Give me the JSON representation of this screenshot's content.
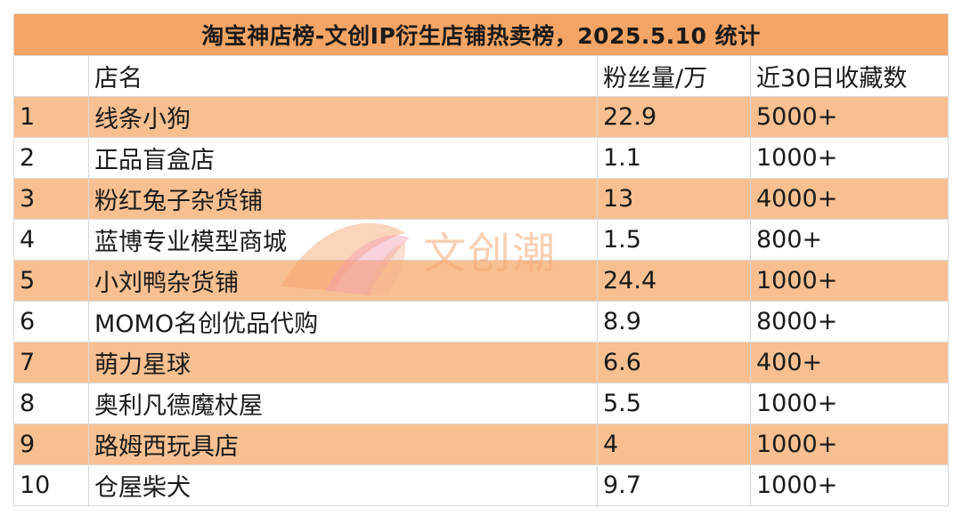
{
  "chart_data": {
    "type": "table",
    "title": "淘宝神店榜-文创IP衍生店铺热卖榜，2025.5.10 统计",
    "columns": [
      "",
      "店名",
      "粉丝量/万",
      "近30日收藏数"
    ],
    "rows": [
      {
        "rank": "1",
        "name": "线条小狗",
        "fans": "22.9",
        "favorites": "5000+"
      },
      {
        "rank": "2",
        "name": "正品盲盒店",
        "fans": "1.1",
        "favorites": "1000+"
      },
      {
        "rank": "3",
        "name": "粉红兔子杂货铺",
        "fans": "13",
        "favorites": "4000+"
      },
      {
        "rank": "4",
        "name": "蓝博专业模型商城",
        "fans": "1.5",
        "favorites": "800+"
      },
      {
        "rank": "5",
        "name": "小刘鸭杂货铺",
        "fans": "24.4",
        "favorites": "1000+"
      },
      {
        "rank": "6",
        "name": "MOMO名创优品代购",
        "fans": "8.9",
        "favorites": "8000+"
      },
      {
        "rank": "7",
        "name": "萌力星球",
        "fans": "6.6",
        "favorites": "400+"
      },
      {
        "rank": "8",
        "name": "奥利凡德魔杖屋",
        "fans": "5.5",
        "favorites": "1000+"
      },
      {
        "rank": "9",
        "name": "路姆西玩具店",
        "fans": "4",
        "favorites": "1000+"
      },
      {
        "rank": "10",
        "name": "仓屋柴犬",
        "fans": "9.7",
        "favorites": "1000+"
      }
    ]
  },
  "watermark": {
    "text": "文创潮"
  },
  "colors": {
    "title_bg": "#f4a565",
    "row_highlight": "#f8c091",
    "row_plain": "#ffffff",
    "grid": "#d9d9d9"
  }
}
